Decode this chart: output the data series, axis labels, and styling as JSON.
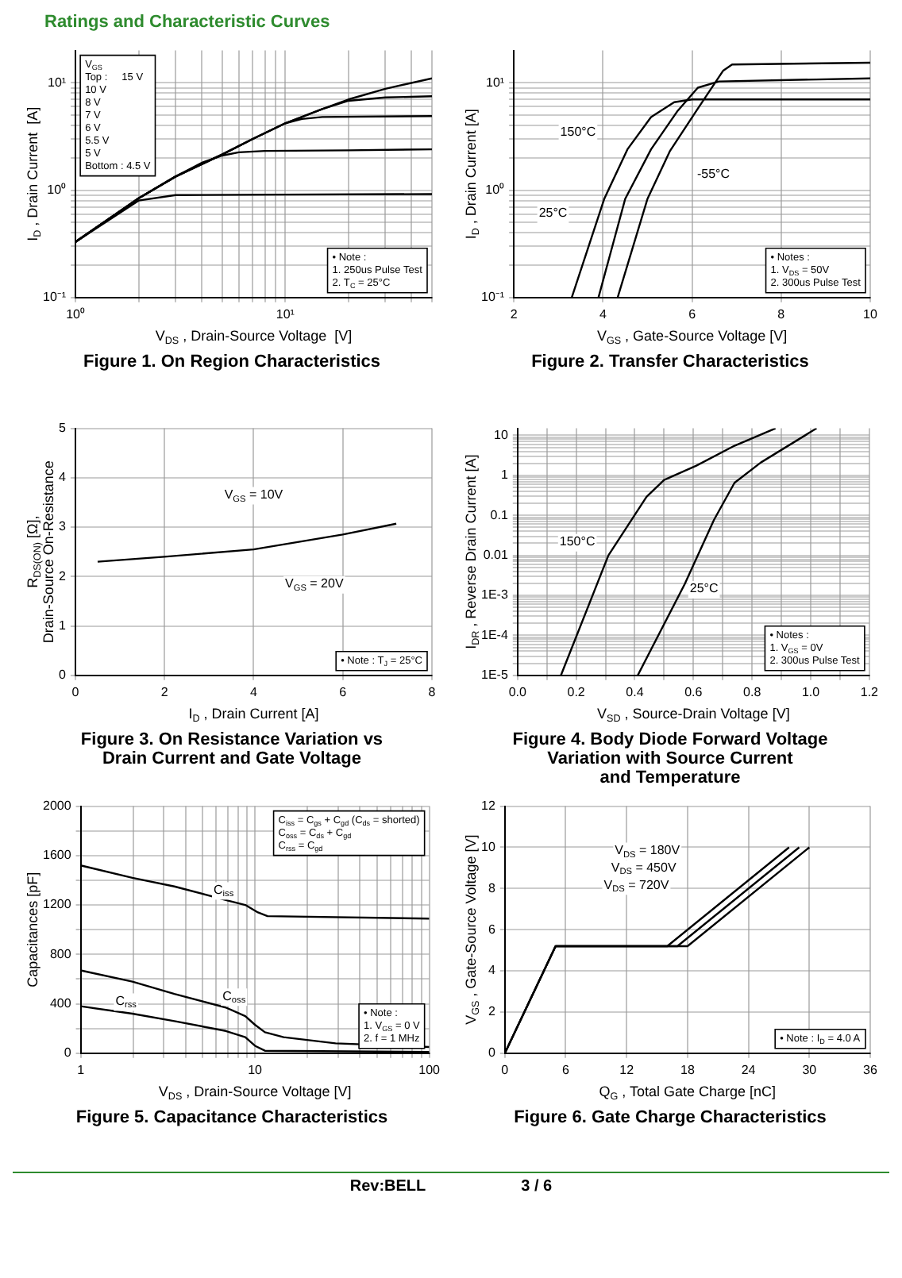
{
  "chart_data": [
    {
      "type": "line",
      "title": "Figure 1. On Region Characteristics",
      "xlabel": "V$_{DS}$ , Drain-Source Voltage  [V]",
      "ylabel": "I$_{D}$ , Drain Current  [A]",
      "log": "xy",
      "grid": true,
      "marker": "none",
      "line_style": "solid",
      "xlim": [
        1,
        50
      ],
      "ylim": [
        0.1,
        20
      ],
      "xticks": [
        {
          "value": 1,
          "label": "10⁰"
        },
        {
          "value": 2,
          "label": null
        },
        {
          "value": 3,
          "label": null
        },
        {
          "value": 4,
          "label": null
        },
        {
          "value": 5,
          "label": null
        },
        {
          "value": 6,
          "label": null
        },
        {
          "value": 7,
          "label": null
        },
        {
          "value": 8,
          "label": null
        },
        {
          "value": 9,
          "label": null
        },
        {
          "value": 10,
          "label": "10¹"
        },
        {
          "value": 20,
          "label": null
        },
        {
          "value": 30,
          "label": null
        },
        {
          "value": 40,
          "label": null
        },
        {
          "value": 50,
          "label": null
        }
      ],
      "yticks": [
        {
          "value": 0.1,
          "label": "10⁻¹"
        },
        {
          "value": 0.2,
          "label": null
        },
        {
          "value": 0.3,
          "label": null
        },
        {
          "value": 0.4,
          "label": null
        },
        {
          "value": 0.5,
          "label": null
        },
        {
          "value": 0.6,
          "label": null
        },
        {
          "value": 0.7,
          "label": null
        },
        {
          "value": 0.8,
          "label": null
        },
        {
          "value": 0.9,
          "label": null
        },
        {
          "value": 1,
          "label": "10⁰"
        },
        {
          "value": 2,
          "label": null
        },
        {
          "value": 3,
          "label": null
        },
        {
          "value": 4,
          "label": null
        },
        {
          "value": 5,
          "label": null
        },
        {
          "value": 6,
          "label": null
        },
        {
          "value": 7,
          "label": null
        },
        {
          "value": 8,
          "label": null
        },
        {
          "value": 9,
          "label": null
        },
        {
          "value": 10,
          "label": "10¹"
        }
      ],
      "series": [
        {
          "color": "#000000",
          "x": [
            1,
            2,
            3,
            10,
            50
          ],
          "values": [
            0.33,
            0.8,
            0.9,
            0.91,
            0.92
          ]
        },
        {
          "color": "#000000",
          "x": [
            1,
            2,
            3,
            4,
            5,
            6,
            8,
            20,
            50
          ],
          "values": [
            0.33,
            0.84,
            1.34,
            1.8,
            2.1,
            2.25,
            2.32,
            2.35,
            2.4
          ]
        },
        {
          "color": "#000000",
          "x": [
            1,
            2,
            3,
            5,
            7,
            10,
            12,
            15,
            50
          ],
          "values": [
            0.33,
            0.84,
            1.34,
            2.15,
            3.0,
            4.2,
            4.6,
            4.8,
            4.9
          ]
        },
        {
          "color": "#000000",
          "x": [
            1,
            2,
            3,
            5,
            7,
            10,
            15,
            20,
            30,
            50
          ],
          "values": [
            0.33,
            0.84,
            1.34,
            2.15,
            3.0,
            4.2,
            5.7,
            6.8,
            7.3,
            7.5
          ]
        },
        {
          "color": "#000000",
          "x": [
            1,
            2,
            3,
            5,
            7,
            10,
            15,
            20,
            30,
            50
          ],
          "values": [
            0.33,
            0.84,
            1.34,
            2.15,
            3.0,
            4.2,
            5.7,
            7.0,
            8.8,
            11
          ]
        }
      ],
      "annotations": [
        "Ratings and Characteristic Curves",
        "V$_{GS}$\nTop :     15 V\n10 V\n8 V\n7 V\n6 V\n5.5 V\n5 V\nBottom : 4.5 V",
        "• Note :\n1. 250us Pulse Test\n2. T$_{C}$ = 25°C"
      ]
    },
    {
      "type": "line",
      "title": "Figure 2. Transfer Characteristics",
      "xlabel": "V$_{GS}$ , Gate-Source Voltage [V]",
      "ylabel": "I$_{D}$ , Drain Current [A]",
      "log": "y",
      "grid": true,
      "marker": "none",
      "line_style": "solid",
      "xlim": [
        2,
        10
      ],
      "ylim": [
        0.1,
        20
      ],
      "xticks": [
        2,
        4,
        6,
        8,
        10
      ],
      "yticks": [
        {
          "value": 0.1,
          "label": "10⁻¹"
        },
        {
          "value": 0.2,
          "label": null
        },
        {
          "value": 0.3,
          "label": null
        },
        {
          "value": 0.4,
          "label": null
        },
        {
          "value": 0.5,
          "label": null
        },
        {
          "value": 0.6,
          "label": null
        },
        {
          "value": 0.7,
          "label": null
        },
        {
          "value": 0.8,
          "label": null
        },
        {
          "value": 0.9,
          "label": null
        },
        {
          "value": 1,
          "label": "10⁰"
        },
        {
          "value": 2,
          "label": null
        },
        {
          "value": 3,
          "label": null
        },
        {
          "value": 4,
          "label": null
        },
        {
          "value": 5,
          "label": null
        },
        {
          "value": 6,
          "label": null
        },
        {
          "value": 7,
          "label": null
        },
        {
          "value": 8,
          "label": null
        },
        {
          "value": 9,
          "label": null
        },
        {
          "value": 10,
          "label": "10¹"
        }
      ],
      "series": [
        {
          "color": "#000000",
          "x": [
            3.3,
            4.03,
            4.55,
            5.08,
            5.6,
            6.0,
            10
          ],
          "values": [
            0.1,
            0.83,
            2.4,
            4.8,
            6.6,
            7.0,
            7.0
          ]
        },
        {
          "color": "#000000",
          "x": [
            3.9,
            4.5,
            5.08,
            5.68,
            6.13,
            6.6,
            10
          ],
          "values": [
            0.1,
            0.83,
            2.4,
            5.5,
            9,
            10.3,
            11
          ]
        },
        {
          "color": "#000000",
          "x": [
            4.33,
            5.0,
            5.5,
            6.1,
            6.7,
            6.9,
            10
          ],
          "values": [
            0.1,
            0.83,
            2.3,
            5.5,
            13,
            14.8,
            15.4
          ]
        }
      ],
      "annotations": [
        "150°C",
        "-55°C",
        "25°C",
        "• Notes :\n1. V$_{DS}$ = 50V\n2. 300us Pulse Test"
      ]
    },
    {
      "type": "line",
      "title": "Figure 3. On Resistance Variation vs\nDrain Current and Gate Voltage",
      "xlabel": "I$_{D}$ , Drain Current [A]",
      "ylabel": "R$_{DS(ON)}$ [Ω],\nDrain-Source On-Resistance",
      "grid": true,
      "marker": "none",
      "line_style": "solid",
      "xlim": [
        0,
        8
      ],
      "ylim": [
        0,
        5
      ],
      "xticks": [
        0,
        2,
        4,
        6,
        8
      ],
      "yticks": [
        0,
        1,
        2,
        3,
        4,
        5
      ],
      "series": [
        {
          "color": "#000000",
          "x": [
            0.5,
            2,
            4,
            6,
            7.2
          ],
          "values": [
            2.3,
            2.4,
            2.55,
            2.85,
            3.07
          ]
        }
      ],
      "annotations": [
        "V$_{GS}$ = 10V",
        "V$_{GS}$ = 20V",
        "• Note : T$_{J}$ = 25°C"
      ]
    },
    {
      "type": "line",
      "title": "Figure 4. Body Diode Forward Voltage\nVariation with Source Current\nand Temperature",
      "xlabel": "V$_{SD}$ , Source-Drain Voltage [V]",
      "ylabel": "I$_{DR}$ , Reverse Drain Current [A]",
      "log": "y",
      "grid": true,
      "marker": "none",
      "line_style": "solid",
      "xlim": [
        0,
        1.2
      ],
      "ylim": [
        1e-05,
        15
      ],
      "xticks": [
        {
          "value": 0,
          "label": "0.0"
        },
        {
          "value": 0.1,
          "label": null
        },
        0.2,
        {
          "value": 0.3,
          "label": null
        },
        0.4,
        {
          "value": 0.5,
          "label": null
        },
        0.6,
        {
          "value": 0.7,
          "label": null
        },
        0.8,
        {
          "value": 0.9,
          "label": null
        },
        {
          "value": 1,
          "label": "1.0"
        },
        {
          "value": 1.1,
          "label": null
        },
        1.2
      ],
      "yticks": [
        {
          "value": 1e-05,
          "label": "1E-5"
        },
        {
          "value": 2e-05,
          "label": null
        },
        {
          "value": 3e-05,
          "label": null
        },
        {
          "value": 4e-05,
          "label": null
        },
        {
          "value": 5e-05,
          "label": null
        },
        {
          "value": 6e-05,
          "label": null
        },
        {
          "value": 7e-05,
          "label": null
        },
        {
          "value": 8e-05,
          "label": null
        },
        {
          "value": 9e-05,
          "label": null
        },
        {
          "value": 0.0001,
          "label": "1E-4"
        },
        {
          "value": 0.0002,
          "label": null
        },
        {
          "value": 0.0003,
          "label": null
        },
        {
          "value": 0.0004,
          "label": null
        },
        {
          "value": 0.0005,
          "label": null
        },
        {
          "value": 0.0006,
          "label": null
        },
        {
          "value": 0.0007,
          "label": null
        },
        {
          "value": 0.0008,
          "label": null
        },
        {
          "value": 0.0009,
          "label": null
        },
        {
          "value": 0.001,
          "label": "1E-3"
        },
        {
          "value": 0.002,
          "label": null
        },
        {
          "value": 0.003,
          "label": null
        },
        {
          "value": 0.004,
          "label": null
        },
        {
          "value": 0.005,
          "label": null
        },
        {
          "value": 0.006,
          "label": null
        },
        {
          "value": 0.007,
          "label": null
        },
        {
          "value": 0.008,
          "label": null
        },
        {
          "value": 0.009,
          "label": null
        },
        0.01,
        {
          "value": 0.02,
          "label": null
        },
        {
          "value": 0.03,
          "label": null
        },
        {
          "value": 0.04,
          "label": null
        },
        {
          "value": 0.05,
          "label": null
        },
        {
          "value": 0.06,
          "label": null
        },
        {
          "value": 0.07,
          "label": null
        },
        {
          "value": 0.08,
          "label": null
        },
        {
          "value": 0.09,
          "label": null
        },
        0.1,
        {
          "value": 0.2,
          "label": null
        },
        {
          "value": 0.3,
          "label": null
        },
        {
          "value": 0.4,
          "label": null
        },
        {
          "value": 0.5,
          "label": null
        },
        {
          "value": 0.6,
          "label": null
        },
        {
          "value": 0.7,
          "label": null
        },
        {
          "value": 0.8,
          "label": null
        },
        {
          "value": 0.9,
          "label": null
        },
        1,
        {
          "value": 2,
          "label": null
        },
        {
          "value": 3,
          "label": null
        },
        {
          "value": 4,
          "label": null
        },
        {
          "value": 5,
          "label": null
        },
        {
          "value": 6,
          "label": null
        },
        {
          "value": 7,
          "label": null
        },
        {
          "value": 8,
          "label": null
        },
        {
          "value": 9,
          "label": null
        },
        10
      ],
      "series": [
        {
          "color": "#000000",
          "x": [
            0.148,
            0.31,
            0.44,
            0.5,
            0.61,
            0.74,
            0.88
          ],
          "values": [
            1e-05,
            0.01,
            0.29,
            0.77,
            1.75,
            5.5,
            15
          ]
        },
        {
          "color": "#000000",
          "x": [
            0.41,
            0.57,
            0.67,
            0.74,
            0.83,
            1.02
          ],
          "values": [
            1e-05,
            0.0019,
            0.077,
            0.65,
            2.1,
            15
          ]
        }
      ],
      "annotations": [
        "150°C",
        "25°C",
        "• Notes :\n1. V$_{GS}$ = 0V\n2. 300us Pulse Test"
      ]
    },
    {
      "type": "line",
      "title": "Figure 5. Capacitance Characteristics",
      "xlabel": "V$_{DS}$ , Drain-Source Voltage [V]",
      "ylabel": "Capacitances [pF]",
      "log": "x",
      "grid": true,
      "marker": "none",
      "line_style": "solid",
      "xlim": [
        1,
        100
      ],
      "ylim": [
        0,
        2000
      ],
      "xticks": [
        1,
        {
          "value": 2,
          "label": null
        },
        {
          "value": 3,
          "label": null
        },
        {
          "value": 4,
          "label": null
        },
        {
          "value": 5,
          "label": null
        },
        {
          "value": 6,
          "label": null
        },
        {
          "value": 7,
          "label": null
        },
        {
          "value": 8,
          "label": null
        },
        {
          "value": 9,
          "label": null
        },
        10,
        {
          "value": 20,
          "label": null
        },
        {
          "value": 30,
          "label": null
        },
        {
          "value": 40,
          "label": null
        },
        {
          "value": 50,
          "label": null
        },
        {
          "value": 60,
          "label": null
        },
        {
          "value": 70,
          "label": null
        },
        {
          "value": 80,
          "label": null
        },
        {
          "value": 90,
          "label": null
        },
        100
      ],
      "yticks": [
        0,
        {
          "value": 200,
          "label": null
        },
        400,
        {
          "value": 600,
          "label": null
        },
        800,
        {
          "value": 1000,
          "label": null
        },
        1200,
        {
          "value": 1400,
          "label": null
        },
        1600,
        {
          "value": 1800,
          "label": null
        },
        2000
      ],
      "series": [
        {
          "color": "#000000",
          "x": [
            1,
            1.98,
            3.45,
            6.8,
            8.8,
            10.4,
            11.8,
            100
          ],
          "values": [
            1520,
            1420,
            1350,
            1240,
            1200,
            1140,
            1110,
            1090
          ]
        },
        {
          "color": "#000000",
          "x": [
            1,
            1.98,
            3.45,
            6.8,
            8.8,
            10,
            11.4,
            14.6,
            29,
            100
          ],
          "values": [
            670,
            580,
            480,
            370,
            300,
            230,
            170,
            130,
            80,
            50
          ]
        },
        {
          "color": "#000000",
          "x": [
            1,
            1.98,
            3.45,
            6.8,
            8.8,
            10,
            11.4,
            100
          ],
          "values": [
            380,
            320,
            260,
            180,
            130,
            60,
            20,
            10
          ]
        }
      ],
      "annotations": [
        "C$_{iss}$",
        "C$_{oss}$",
        "C$_{rss}$",
        "C$_{iss}$ = C$_{gs}$ + C$_{gd}$ (C$_{ds}$ = shorted)\nC$_{oss}$ = C$_{ds}$ + C$_{gd}$\nC$_{rss}$ = C$_{gd}$",
        "• Note :\n1. V$_{GS}$ = 0 V\n2. f = 1 MHz"
      ]
    },
    {
      "type": "line",
      "title": "Figure 6. Gate Charge Characteristics",
      "xlabel": "Q$_{G}$ , Total Gate Charge [nC]",
      "ylabel": "V$_{GS}$ , Gate-Source Voltage [V]",
      "grid": true,
      "marker": "none",
      "line_style": "solid",
      "xlim": [
        0,
        36
      ],
      "ylim": [
        0,
        12
      ],
      "xticks": [
        0,
        6,
        12,
        18,
        24,
        30,
        36
      ],
      "yticks": [
        0,
        2,
        4,
        6,
        8,
        10,
        12
      ],
      "series": [
        {
          "color": "#000000",
          "x": [
            0,
            5,
            16,
            28
          ],
          "values": [
            0,
            5.2,
            5.2,
            10
          ]
        },
        {
          "color": "#000000",
          "x": [
            0,
            5,
            17,
            29
          ],
          "values": [
            0,
            5.2,
            5.2,
            10
          ]
        },
        {
          "color": "#000000",
          "x": [
            0,
            5,
            18,
            30
          ],
          "values": [
            0,
            5.2,
            5.2,
            10
          ]
        }
      ],
      "annotations": [
        "V$_{DS}$ = 180V",
        "V$_{DS}$ = 450V",
        "V$_{DS}$ = 720V",
        "• Note : I$_{D}$ = 4.0 A",
        "Rev:BELL",
        "3 / 6"
      ]
    }
  ]
}
